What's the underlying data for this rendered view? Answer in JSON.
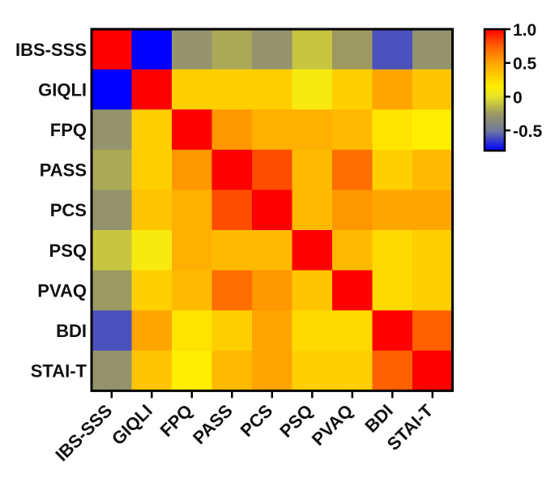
{
  "chart_data": {
    "type": "heatmap",
    "title": "",
    "xlabel": "",
    "ylabel": "",
    "variables": [
      "IBS-SSS",
      "GIQLI",
      "FPQ",
      "PASS",
      "PCS",
      "PSQ",
      "PVAQ",
      "BDI",
      "STAI-T"
    ],
    "matrix": [
      [
        1.0,
        -0.8,
        -0.3,
        -0.2,
        -0.3,
        -0.1,
        -0.25,
        -0.6,
        -0.3
      ],
      [
        -0.8,
        1.0,
        0.3,
        0.3,
        0.3,
        0.1,
        0.3,
        0.5,
        0.35
      ],
      [
        -0.3,
        0.3,
        1.0,
        0.55,
        0.45,
        0.45,
        0.4,
        0.2,
        0.15
      ],
      [
        -0.2,
        0.3,
        0.55,
        1.0,
        0.8,
        0.4,
        0.7,
        0.3,
        0.4
      ],
      [
        -0.3,
        0.35,
        0.45,
        0.8,
        1.0,
        0.4,
        0.55,
        0.5,
        0.5
      ],
      [
        -0.1,
        0.1,
        0.45,
        0.4,
        0.4,
        1.0,
        0.4,
        0.25,
        0.3
      ],
      [
        -0.25,
        0.3,
        0.4,
        0.7,
        0.55,
        0.35,
        1.0,
        0.25,
        0.3
      ],
      [
        -0.6,
        0.5,
        0.2,
        0.3,
        0.5,
        0.25,
        0.25,
        1.0,
        0.75
      ],
      [
        -0.3,
        0.35,
        0.15,
        0.4,
        0.5,
        0.3,
        0.3,
        0.75,
        1.0
      ]
    ],
    "colorbar": {
      "min": -0.8,
      "max": 1.0,
      "tick_values": [
        1.0,
        0.5,
        0,
        -0.5
      ],
      "tick_labels": [
        "1.0",
        "0.5",
        "0",
        "-0.5"
      ],
      "stops": [
        {
          "value": -0.8,
          "color": "#0000ff"
        },
        {
          "value": -0.5,
          "color": "#707a9c"
        },
        {
          "value": -0.25,
          "color": "#9c9a62"
        },
        {
          "value": 0.0,
          "color": "#e6e22a"
        },
        {
          "value": 0.15,
          "color": "#ffee00"
        },
        {
          "value": 0.3,
          "color": "#ffcf00"
        },
        {
          "value": 0.5,
          "color": "#ffa500"
        },
        {
          "value": 0.75,
          "color": "#ff6000"
        },
        {
          "value": 1.0,
          "color": "#ff0000"
        }
      ]
    },
    "legend_position": "right"
  }
}
